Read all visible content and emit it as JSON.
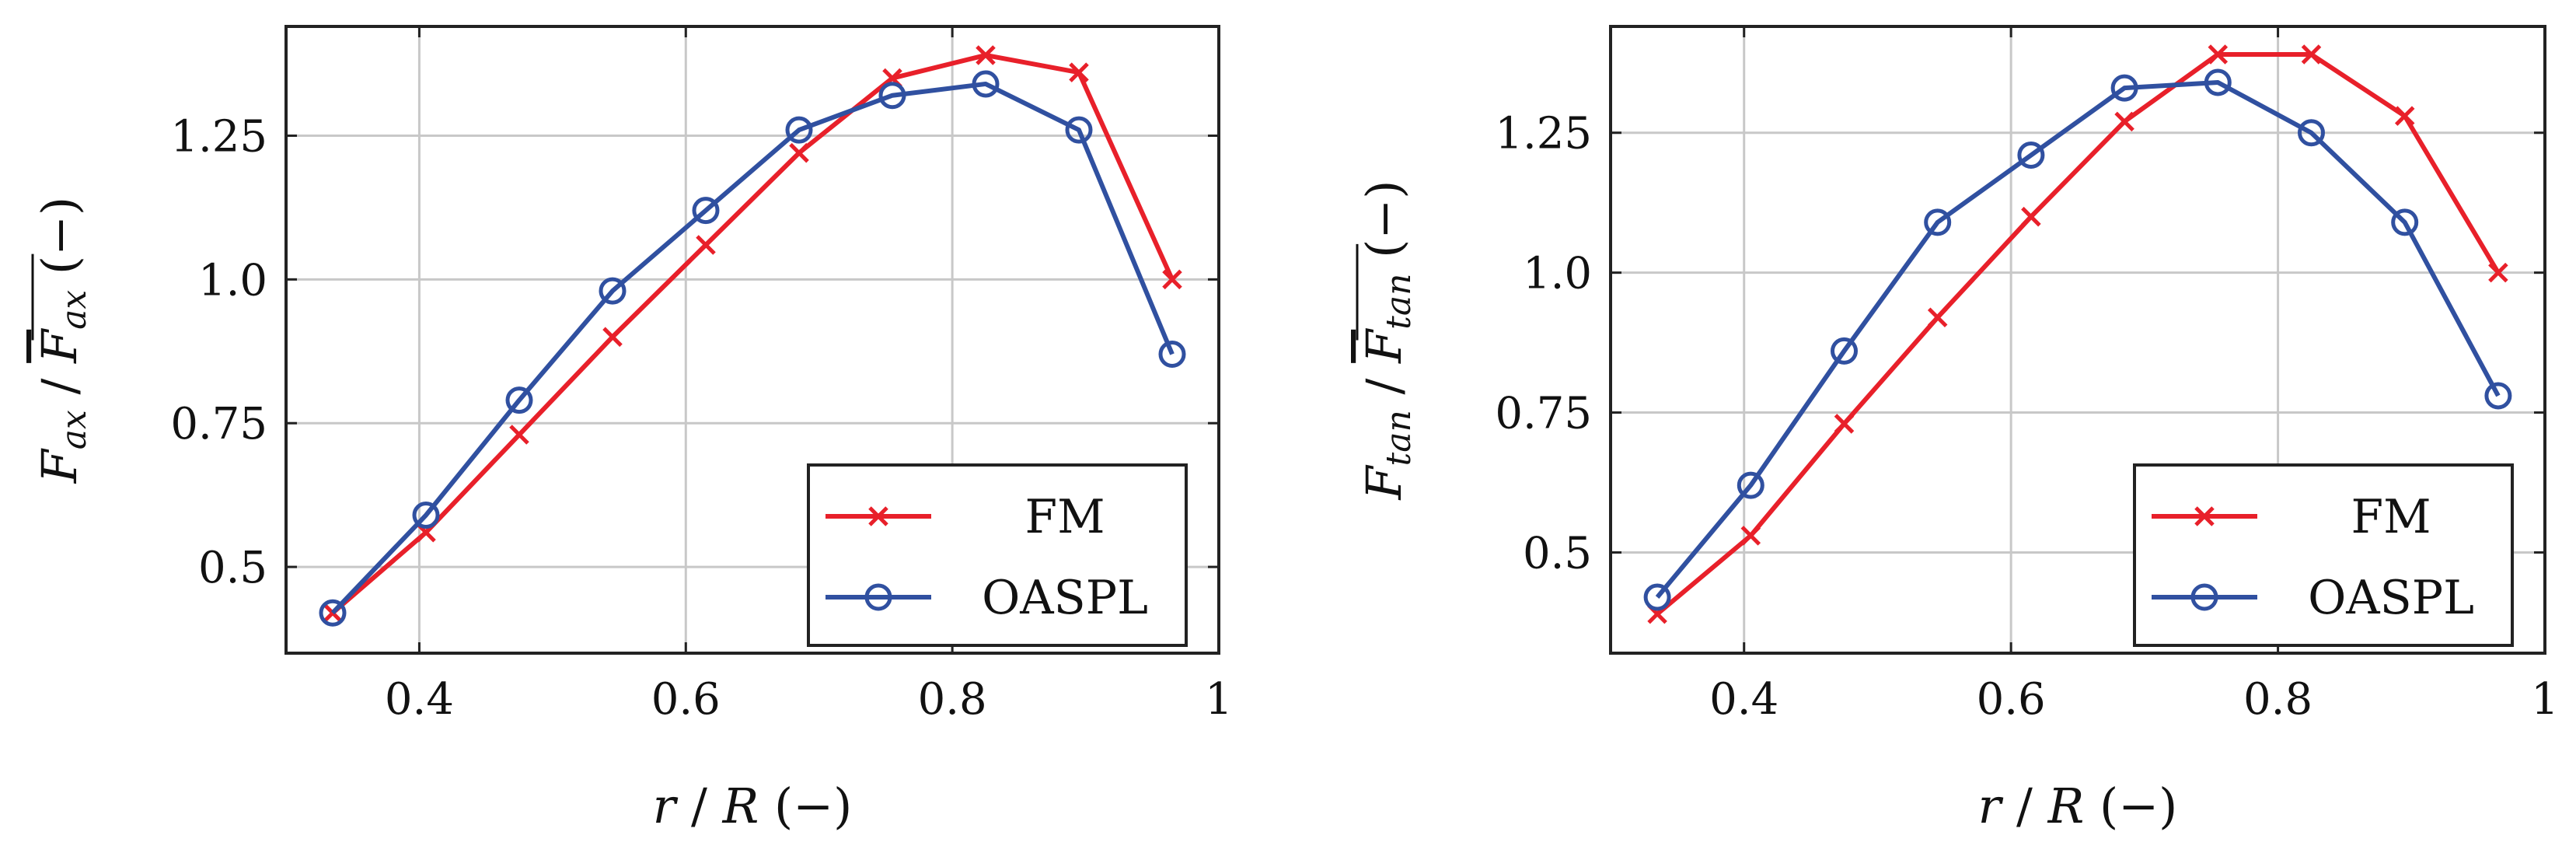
{
  "chart_data": [
    {
      "type": "line",
      "xlabel": "r / R (−)",
      "ylabel": "F_ax / F̄_ax (−)",
      "ylabel_parts": {
        "sym": "F",
        "sub": "ax",
        "unit": "(−)"
      },
      "xlim": [
        0.3,
        1.0
      ],
      "ylim": [
        0.35,
        1.44
      ],
      "xticks": [
        0.4,
        0.6,
        0.8,
        1.0
      ],
      "xtick_labels": [
        "0.4",
        "0.6",
        "0.8",
        "1"
      ],
      "yticks": [
        0.5,
        0.75,
        1.0,
        1.25
      ],
      "ytick_labels": [
        "0.5",
        "0.75",
        "1.0",
        "1.25"
      ],
      "grid": true,
      "legend_position": "bottom-right",
      "series": [
        {
          "name": "FM",
          "color": "#e8202a",
          "marker": "x",
          "x": [
            0.335,
            0.405,
            0.475,
            0.545,
            0.615,
            0.685,
            0.755,
            0.825,
            0.895,
            0.965
          ],
          "y": [
            0.42,
            0.56,
            0.73,
            0.9,
            1.06,
            1.22,
            1.35,
            1.39,
            1.36,
            1.0
          ]
        },
        {
          "name": "OASPL",
          "color": "#3050a0",
          "marker": "o",
          "x": [
            0.335,
            0.405,
            0.475,
            0.545,
            0.615,
            0.685,
            0.755,
            0.825,
            0.895,
            0.965
          ],
          "y": [
            0.42,
            0.59,
            0.79,
            0.98,
            1.12,
            1.26,
            1.32,
            1.34,
            1.26,
            0.87
          ]
        }
      ]
    },
    {
      "type": "line",
      "xlabel": "r / R (−)",
      "ylabel": "F_tan / F̄_tan (−)",
      "ylabel_parts": {
        "sym": "F",
        "sub": "tan",
        "unit": "(−)"
      },
      "xlim": [
        0.3,
        1.0
      ],
      "ylim": [
        0.32,
        1.44
      ],
      "xticks": [
        0.4,
        0.6,
        0.8,
        1.0
      ],
      "xtick_labels": [
        "0.4",
        "0.6",
        "0.8",
        "1"
      ],
      "yticks": [
        0.5,
        0.75,
        1.0,
        1.25
      ],
      "ytick_labels": [
        "0.5",
        "0.75",
        "1.0",
        "1.25"
      ],
      "grid": true,
      "legend_position": "bottom-right",
      "series": [
        {
          "name": "FM",
          "color": "#e8202a",
          "marker": "x",
          "x": [
            0.335,
            0.405,
            0.475,
            0.545,
            0.615,
            0.685,
            0.755,
            0.825,
            0.895,
            0.965
          ],
          "y": [
            0.39,
            0.53,
            0.73,
            0.92,
            1.1,
            1.27,
            1.39,
            1.39,
            1.28,
            1.0
          ]
        },
        {
          "name": "OASPL",
          "color": "#3050a0",
          "marker": "o",
          "x": [
            0.335,
            0.405,
            0.475,
            0.545,
            0.615,
            0.685,
            0.755,
            0.825,
            0.895,
            0.965
          ],
          "y": [
            0.42,
            0.62,
            0.86,
            1.09,
            1.21,
            1.33,
            1.34,
            1.25,
            1.09,
            0.78
          ]
        }
      ]
    }
  ]
}
